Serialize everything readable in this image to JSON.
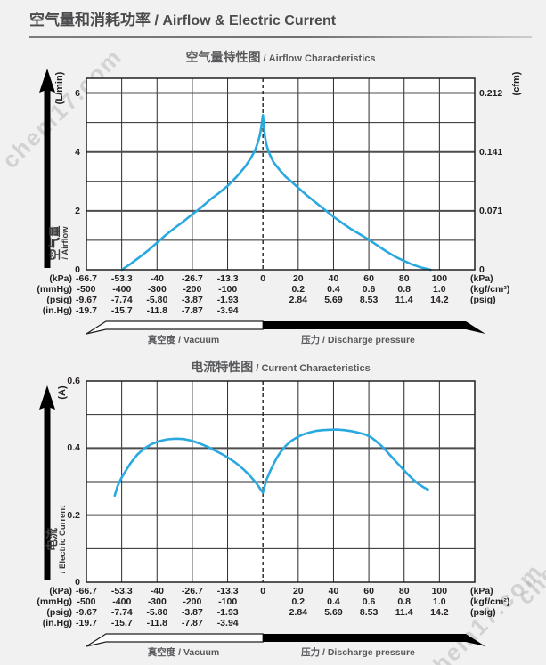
{
  "page": {
    "title_zh": "空气量和消耗功率",
    "title_en": " / Airflow & Electric Current",
    "watermark": "chem17.com",
    "background": "#f1f1f2"
  },
  "x_axis": {
    "range_kpa": [
      -66.7,
      120
    ],
    "zero_line_kpa": 0,
    "vacuum_arrow_label": "真空度 / Vacuum",
    "pressure_arrow_label": "压力 / Discharge pressure",
    "vacuum_rows": [
      {
        "unit": "(kPa)",
        "ticks_kpa": [
          -66.7,
          -53.3,
          -40,
          -26.7,
          -13.3,
          0
        ],
        "labels": [
          "-66.7",
          "-53.3",
          "-40",
          "-26.7",
          "-13.3",
          "0"
        ]
      },
      {
        "unit": "(mmHg)",
        "ticks_kpa": [
          -66.7,
          -53.3,
          -40,
          -26.7,
          -13.3
        ],
        "labels": [
          "-500",
          "-400",
          "-300",
          "-200",
          "-100"
        ]
      },
      {
        "unit": "(psig)",
        "ticks_kpa": [
          -66.7,
          -53.3,
          -40,
          -26.7,
          -13.3
        ],
        "labels": [
          "-9.67",
          "-7.74",
          "-5.80",
          "-3.87",
          "-1.93"
        ]
      },
      {
        "unit": "(in.Hg)",
        "ticks_kpa": [
          -66.7,
          -53.3,
          -40,
          -26.7,
          -13.3
        ],
        "labels": [
          "-19.7",
          "-15.7",
          "-11.8",
          "-7.87",
          "-3.94"
        ]
      }
    ],
    "pressure_rows": [
      {
        "unit": "(kPa)",
        "ticks_kpa": [
          20,
          40,
          60,
          80,
          100
        ],
        "labels": [
          "20",
          "40",
          "60",
          "80",
          "100"
        ]
      },
      {
        "unit": "(kgf/cm²)",
        "ticks_kpa": [
          20,
          40,
          60,
          80,
          100
        ],
        "labels": [
          "0.2",
          "0.4",
          "0.6",
          "0.8",
          "1.0"
        ]
      },
      {
        "unit": "(psig)",
        "ticks_kpa": [
          20,
          40,
          60,
          80,
          100
        ],
        "labels": [
          "2.84",
          "5.69",
          "8.53",
          "11.4",
          "14.2"
        ]
      }
    ]
  },
  "chart_data": [
    {
      "type": "line",
      "name": "airflow",
      "title_zh": "空气量特性图",
      "title_en": " / Airflow Characteristics",
      "y_axis_zh": "空气量",
      "y_axis_en": "/ Airflow",
      "y_unit_left": "(L/min)",
      "y_unit_right": "(cfm)",
      "ylim": [
        0,
        6.5
      ],
      "y_grid_step": 1,
      "grid": true,
      "line_color": "#29a9e0",
      "y_ticks_left": [
        {
          "value": 0,
          "label": "0"
        },
        {
          "value": 2,
          "label": "2"
        },
        {
          "value": 4,
          "label": "4"
        },
        {
          "value": 6,
          "label": "6"
        }
      ],
      "y_ticks_right": [
        {
          "value": 0,
          "label": "0"
        },
        {
          "value": 2,
          "label": "0.071"
        },
        {
          "value": 4,
          "label": "0.141"
        },
        {
          "value": 6,
          "label": "0.212"
        }
      ],
      "points_kpa_value": [
        [
          -53.3,
          0
        ],
        [
          -50,
          0.2
        ],
        [
          -46.7,
          0.42
        ],
        [
          -43.3,
          0.66
        ],
        [
          -40,
          0.92
        ],
        [
          -36.7,
          1.18
        ],
        [
          -33.3,
          1.42
        ],
        [
          -30,
          1.64
        ],
        [
          -26.7,
          1.88
        ],
        [
          -23.3,
          2.12
        ],
        [
          -20,
          2.38
        ],
        [
          -16.7,
          2.6
        ],
        [
          -13.3,
          2.85
        ],
        [
          -10,
          3.15
        ],
        [
          -6.7,
          3.5
        ],
        [
          -4.5,
          3.8
        ],
        [
          -3,
          4.05
        ],
        [
          -2,
          4.3
        ],
        [
          -1.2,
          4.55
        ],
        [
          -0.6,
          4.85
        ],
        [
          0,
          5.25
        ],
        [
          0.6,
          4.8
        ],
        [
          1.2,
          4.5
        ],
        [
          2,
          4.25
        ],
        [
          3,
          4.05
        ],
        [
          4,
          3.9
        ],
        [
          6,
          3.65
        ],
        [
          8,
          3.5
        ],
        [
          10,
          3.35
        ],
        [
          13,
          3.15
        ],
        [
          16,
          3.0
        ],
        [
          20,
          2.78
        ],
        [
          25,
          2.52
        ],
        [
          30,
          2.28
        ],
        [
          35,
          2.04
        ],
        [
          40,
          1.8
        ],
        [
          45,
          1.58
        ],
        [
          50,
          1.38
        ],
        [
          55,
          1.2
        ],
        [
          60,
          1.02
        ],
        [
          65,
          0.82
        ],
        [
          70,
          0.62
        ],
        [
          75,
          0.44
        ],
        [
          80,
          0.3
        ],
        [
          85,
          0.17
        ],
        [
          90,
          0.07
        ],
        [
          95,
          0
        ]
      ]
    },
    {
      "type": "line",
      "name": "current",
      "title_zh": "电流特性图",
      "title_en": " / Current Characteristics",
      "y_axis_zh": "电流",
      "y_axis_en": "/ Electric Current",
      "y_unit_left": "(A)",
      "ylim": [
        0,
        0.6
      ],
      "y_grid_step": 0.1,
      "grid": true,
      "line_color": "#29a9e0",
      "y_ticks_left": [
        {
          "value": 0,
          "label": "0"
        },
        {
          "value": 0.2,
          "label": "0.2"
        },
        {
          "value": 0.4,
          "label": "0.4"
        },
        {
          "value": 0.6,
          "label": "0.6"
        }
      ],
      "points_kpa_value": [
        [
          -56,
          0.258
        ],
        [
          -55,
          0.285
        ],
        [
          -53.5,
          0.31
        ],
        [
          -52,
          0.33
        ],
        [
          -50,
          0.355
        ],
        [
          -47.5,
          0.38
        ],
        [
          -45,
          0.398
        ],
        [
          -42,
          0.412
        ],
        [
          -39,
          0.421
        ],
        [
          -36,
          0.426
        ],
        [
          -33,
          0.428
        ],
        [
          -30,
          0.427
        ],
        [
          -27,
          0.422
        ],
        [
          -24,
          0.414
        ],
        [
          -21,
          0.404
        ],
        [
          -18,
          0.392
        ],
        [
          -15,
          0.38
        ],
        [
          -13.3,
          0.372
        ],
        [
          -11,
          0.36
        ],
        [
          -9,
          0.348
        ],
        [
          -7,
          0.334
        ],
        [
          -5,
          0.318
        ],
        [
          -3,
          0.3
        ],
        [
          -1.5,
          0.284
        ],
        [
          -0.5,
          0.272
        ],
        [
          0,
          0.267
        ],
        [
          0.8,
          0.283
        ],
        [
          2,
          0.305
        ],
        [
          4,
          0.33
        ],
        [
          6,
          0.352
        ],
        [
          8,
          0.372
        ],
        [
          10,
          0.388
        ],
        [
          13,
          0.407
        ],
        [
          16,
          0.421
        ],
        [
          19,
          0.431
        ],
        [
          22,
          0.439
        ],
        [
          26,
          0.446
        ],
        [
          30,
          0.451
        ],
        [
          34,
          0.4535
        ],
        [
          38,
          0.4545
        ],
        [
          42,
          0.455
        ],
        [
          46,
          0.4535
        ],
        [
          50,
          0.4505
        ],
        [
          54,
          0.446
        ],
        [
          58,
          0.4405
        ],
        [
          61,
          0.433
        ],
        [
          64,
          0.421
        ],
        [
          67,
          0.407
        ],
        [
          70,
          0.391
        ],
        [
          73,
          0.373
        ],
        [
          76,
          0.356
        ],
        [
          79,
          0.339
        ],
        [
          82,
          0.322
        ],
        [
          85,
          0.307
        ],
        [
          88,
          0.293
        ],
        [
          91,
          0.283
        ],
        [
          93.5,
          0.276
        ]
      ]
    }
  ]
}
